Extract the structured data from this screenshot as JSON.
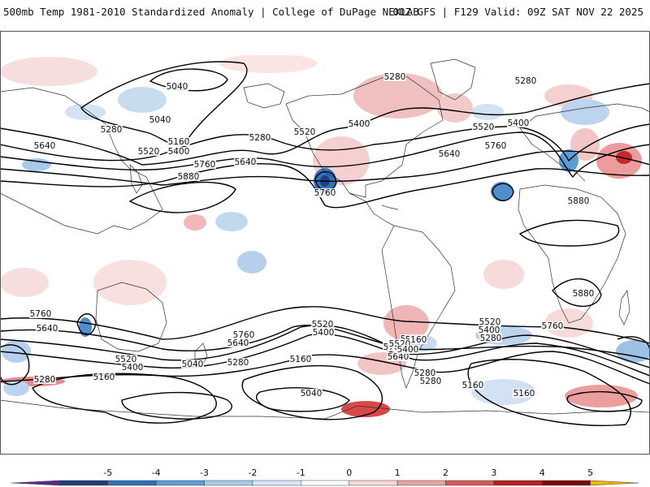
{
  "header": {
    "title": "500mb Temp 1981-2010 Standardized Anomaly | College of DuPage NEXLAB",
    "run_info": "00Z GFS | F129 Valid: 09Z SAT NOV 22 2025"
  },
  "colorbar": {
    "ticks": [
      "-5",
      "-4",
      "-3",
      "-2",
      "-1",
      "0",
      "1",
      "2",
      "3",
      "4",
      "5"
    ],
    "colors": [
      "#5a2a8a",
      "#243b7a",
      "#2d6fb8",
      "#5a9dd8",
      "#a9c9ea",
      "#d7e6f6",
      "#ffffff",
      "#f6d6d6",
      "#e7a3a3",
      "#d45a5a",
      "#b51f1f",
      "#7a0a0a",
      "#f2b400"
    ]
  },
  "contours": {
    "color": "#000000",
    "labels": [
      {
        "text": "5040"
      },
      {
        "text": "5040"
      },
      {
        "text": "5160"
      },
      {
        "text": "5280"
      },
      {
        "text": "5520"
      },
      {
        "text": "5400"
      },
      {
        "text": "5640"
      },
      {
        "text": "5760"
      },
      {
        "text": "5880"
      },
      {
        "text": "5280"
      },
      {
        "text": "5640"
      },
      {
        "text": "5520"
      },
      {
        "text": "5400"
      },
      {
        "text": "5760"
      },
      {
        "text": "5280"
      },
      {
        "text": "5400"
      },
      {
        "text": "5520"
      },
      {
        "text": "5640"
      },
      {
        "text": "5760"
      },
      {
        "text": "5880"
      },
      {
        "text": "5880"
      },
      {
        "text": "5760"
      },
      {
        "text": "5640"
      },
      {
        "text": "5520"
      },
      {
        "text": "5400"
      },
      {
        "text": "5280"
      },
      {
        "text": "5160"
      },
      {
        "text": "5040"
      },
      {
        "text": "5760"
      },
      {
        "text": "5640"
      },
      {
        "text": "5520"
      },
      {
        "text": "5400"
      },
      {
        "text": "5280"
      },
      {
        "text": "5160"
      },
      {
        "text": "5040"
      },
      {
        "text": "5160"
      },
      {
        "text": "5760"
      },
      {
        "text": "5520"
      },
      {
        "text": "5400"
      },
      {
        "text": "5280"
      },
      {
        "text": "5760"
      },
      {
        "text": "5640"
      },
      {
        "text": "5280"
      },
      {
        "text": "5760"
      },
      {
        "text": "5160"
      },
      {
        "text": "5160"
      },
      {
        "text": "5280"
      },
      {
        "text": "5520"
      },
      {
        "text": "5400"
      },
      {
        "text": "5280"
      }
    ]
  }
}
